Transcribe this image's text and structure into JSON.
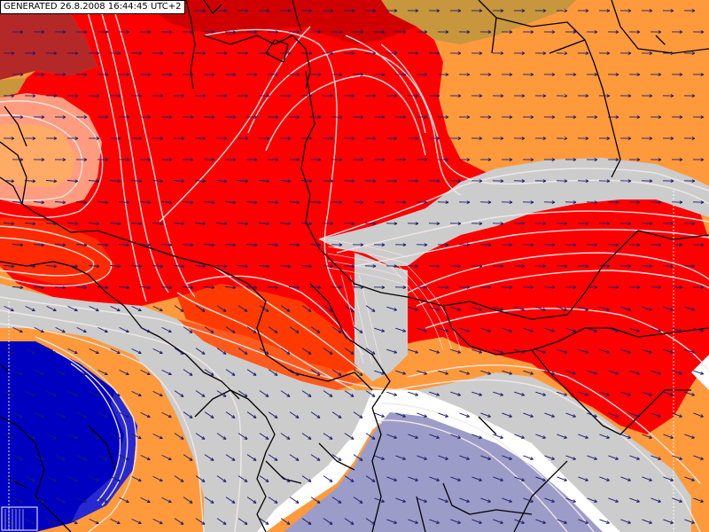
{
  "map": {
    "generated_stamp": "GENERATED 26.8.2008 16:44:45 UTC+2",
    "colors": {
      "deep_red": "#d10000",
      "red": "#ff0000",
      "red_orange": "#ff3a00",
      "orange_red": "#ff5a1e",
      "orange": "#ff9a3c",
      "light_orange": "#ffaa66",
      "salmon": "#ff9c80",
      "tan": "#c8963c",
      "gray": "#cccccc",
      "white": "#ffffff",
      "lavender": "#9c9cc8",
      "blue": "#0000c0",
      "dark_red": "#b42828",
      "border": "#000000",
      "arrow": "#1a1a6a",
      "isoline": "#f4e8e8"
    },
    "layers": [
      "color-shaded field",
      "isolines",
      "country borders",
      "wind vectors"
    ]
  }
}
